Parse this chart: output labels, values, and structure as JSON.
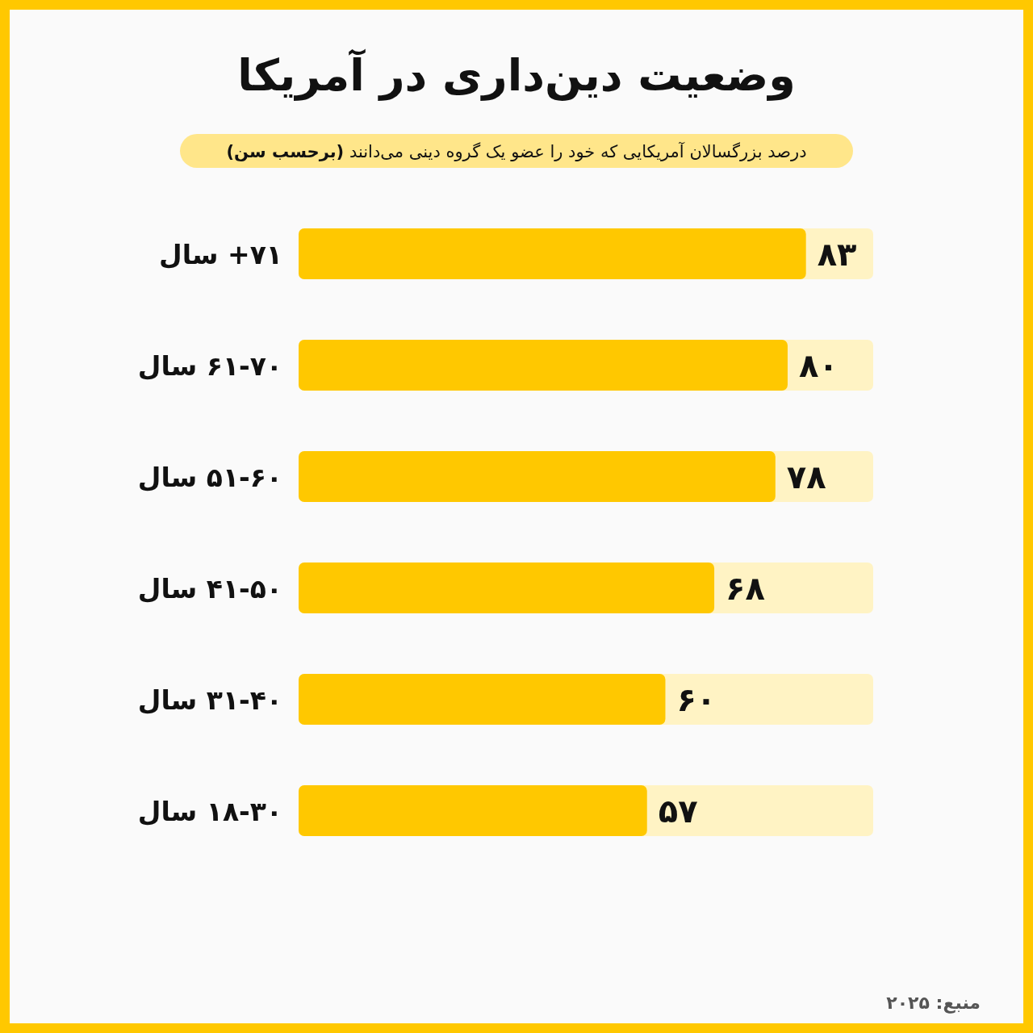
{
  "chart_data": {
    "type": "bar",
    "orientation": "horizontal",
    "title": "وضعیت دین‌داری در آمریکا",
    "subtitle": "درصد بزرگسالان آمریکایی که خود را عضو یک گروه دینی می‌دانند **(برحسب سن)**",
    "categories": [
      "۷۱+ سال",
      "۶۱-۷۰ سال",
      "۵۱-۶۰ سال",
      "۴۱-۵۰ سال",
      "۳۱-۴۰ سال",
      "۱۸-۳۰ سال"
    ],
    "values": [
      83,
      80,
      78,
      68,
      60,
      57
    ],
    "value_labels": [
      "۸۳",
      "۸۰",
      "۷۸",
      "۶۸",
      "۶۰",
      "۵۷"
    ],
    "color": "#ffc800",
    "xlim": [
      0,
      94
    ],
    "bands": [
      {
        "axis": "x",
        "from": 0,
        "to": 94,
        "color": "#fff3c4"
      },
      {
        "axis": "x",
        "from": 0,
        "to": 94,
        "color": "#fff3c4"
      },
      {
        "axis": "x",
        "from": 0,
        "to": 94,
        "color": "#fff3c4"
      },
      {
        "axis": "x",
        "from": 0,
        "to": 94,
        "color": "#fff3c4"
      },
      {
        "axis": "x",
        "from": 0,
        "to": 94,
        "color": "#fff3c4"
      },
      {
        "axis": "x",
        "from": 0,
        "to": 94,
        "color": "#fff3c4"
      }
    ],
    "annotations": [
      "منبع: ۲۰۲۵"
    ]
  }
}
